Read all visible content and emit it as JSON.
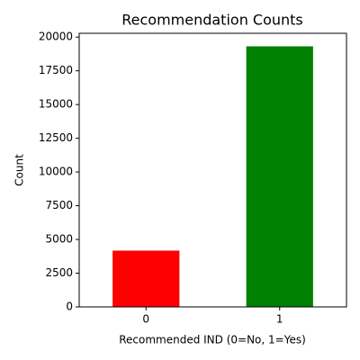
{
  "chart_data": {
    "type": "bar",
    "title": "Recommendation Counts",
    "x_label": "Recommended IND (0=No, 1=Yes)",
    "y_label": "Count",
    "categories": [
      "0",
      "1"
    ],
    "values": [
      4172,
      19314
    ],
    "colors": [
      "#ff0000",
      "#008000"
    ],
    "ylim": [
      0,
      20280
    ],
    "yticks": [
      0,
      2500,
      5000,
      7500,
      10000,
      12500,
      15000,
      17500,
      20000
    ],
    "grid": false
  }
}
